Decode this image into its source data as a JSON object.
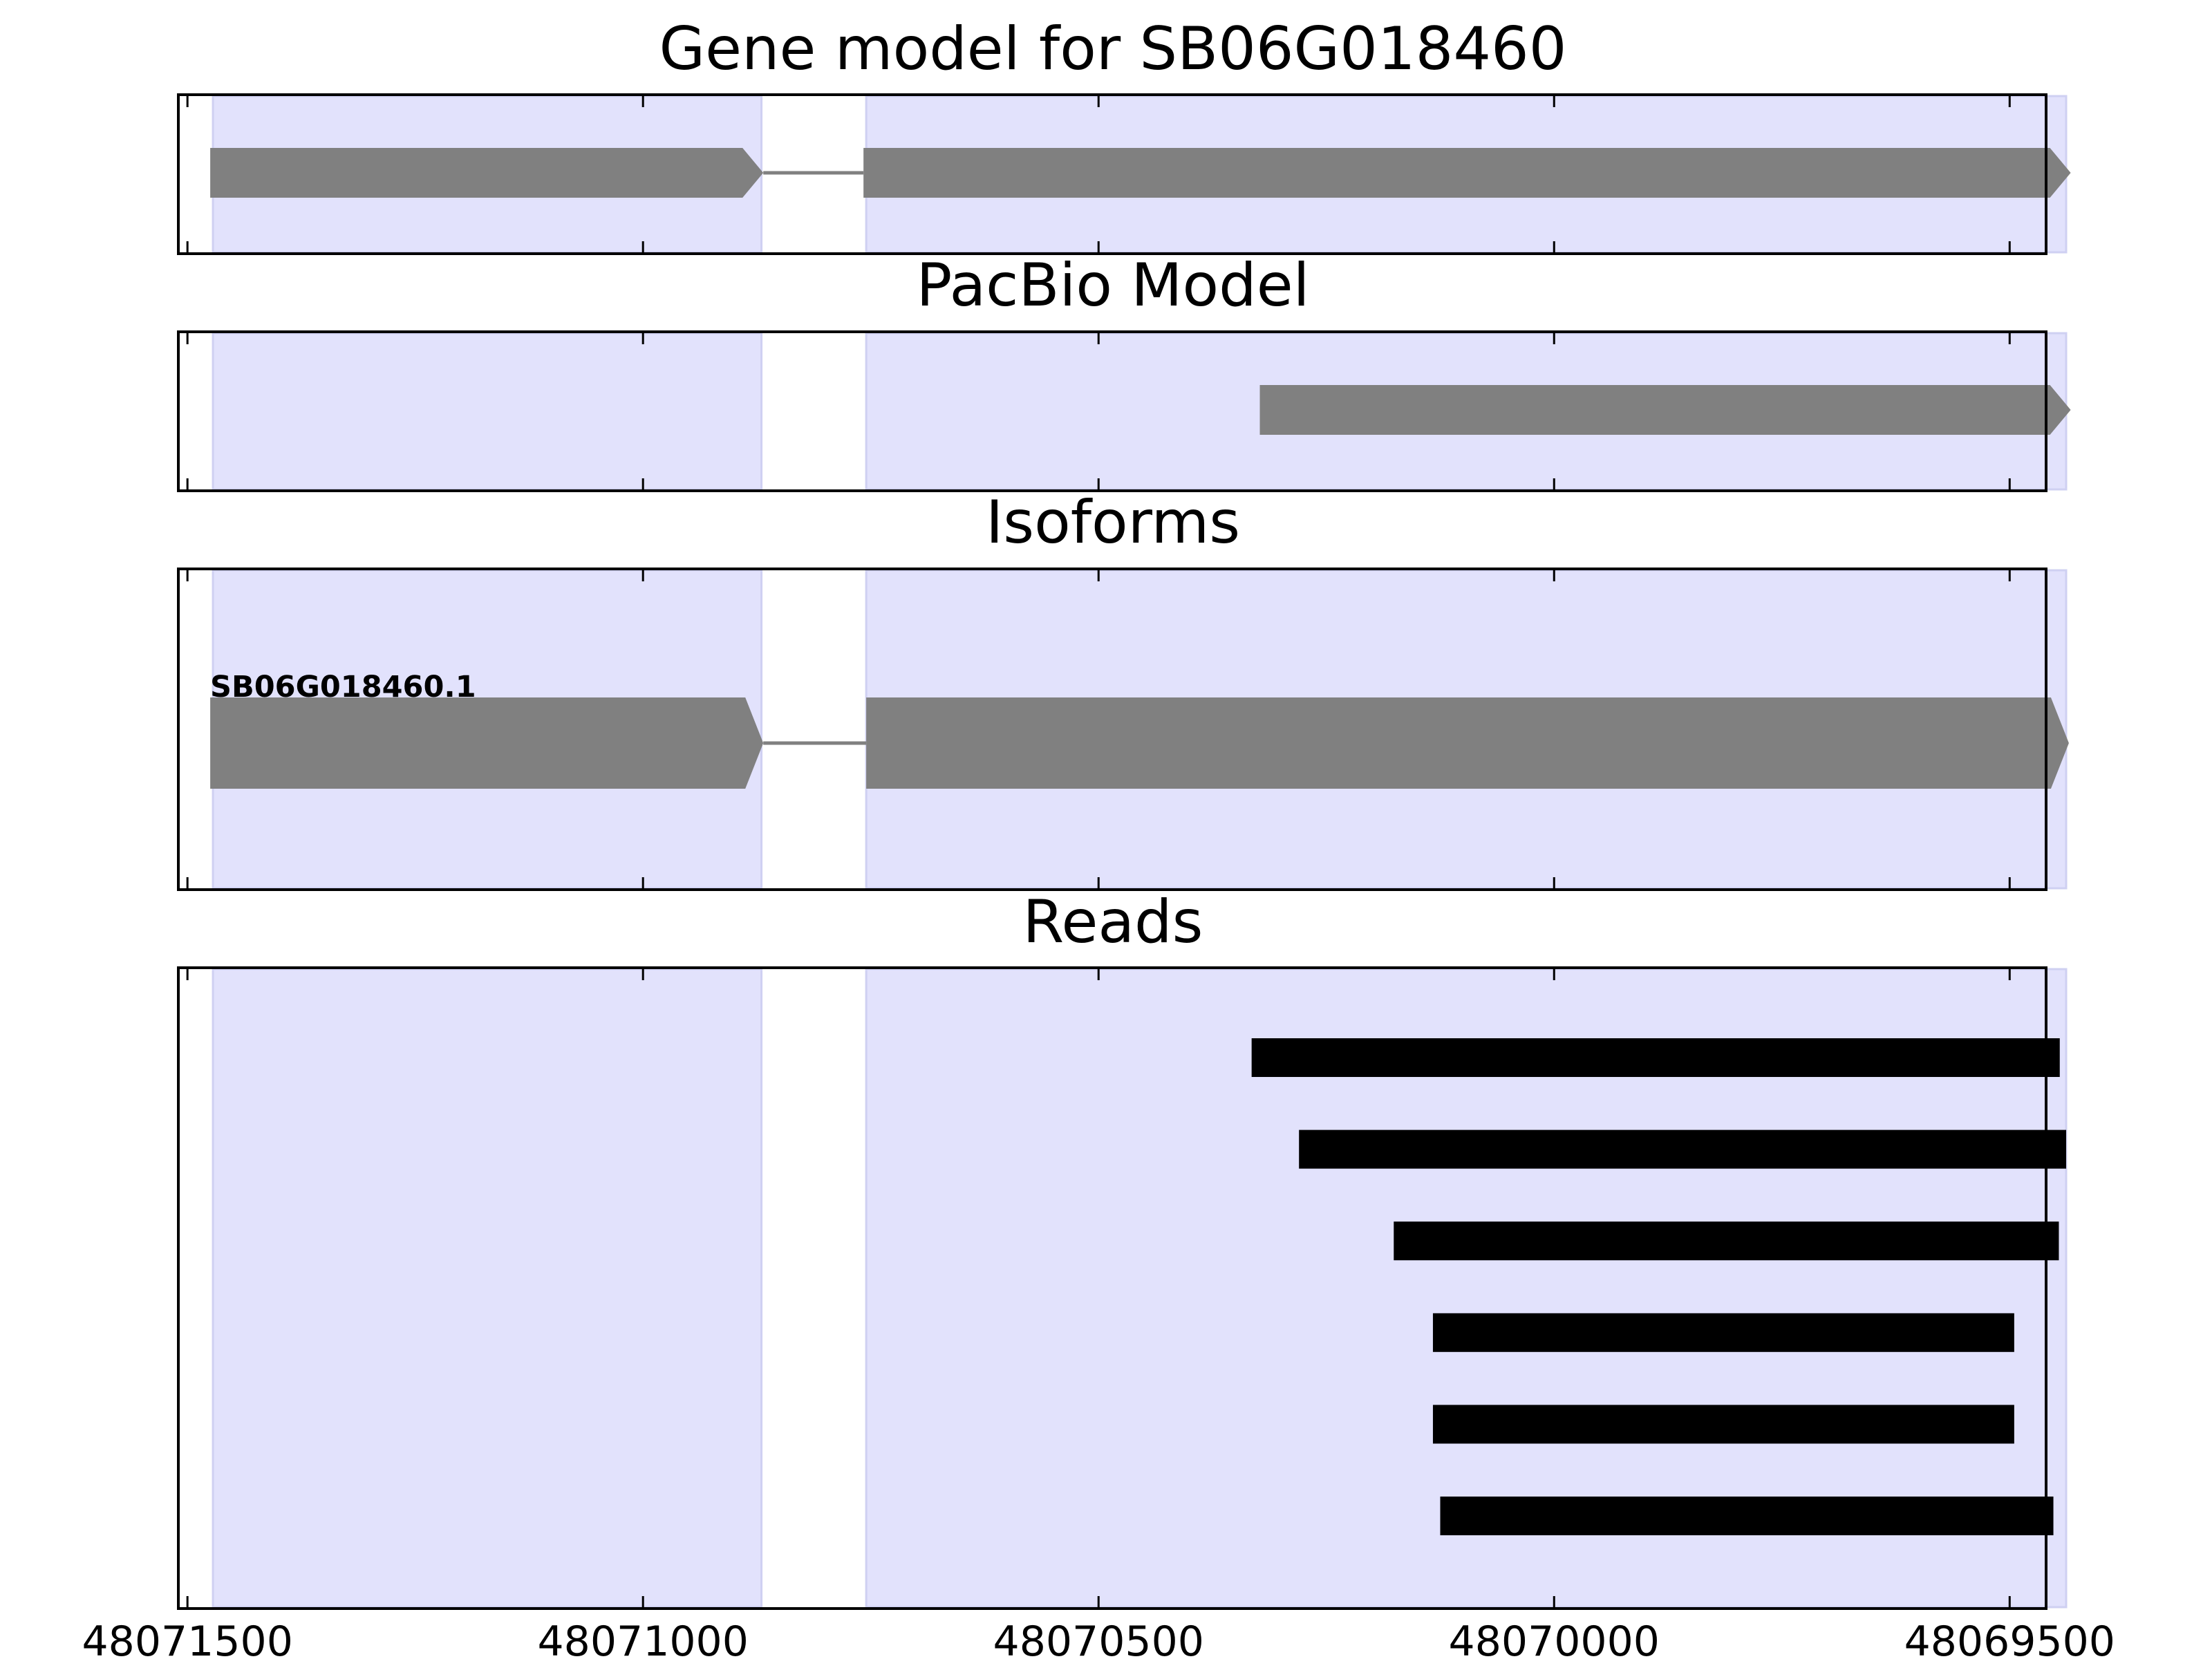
{
  "chart_data": {
    "type": "gene-track",
    "title": "",
    "xaxis": {
      "ticks": [
        48071500,
        48071000,
        48070500,
        48070000,
        48069500
      ],
      "tick_labels": [
        "48071500",
        "48071000",
        "48070500",
        "48070000",
        "48069500"
      ],
      "xlim": [
        48071510,
        48069460
      ],
      "reversed": true
    },
    "shaded_exon_regions": [
      [
        48071472,
        48070870
      ],
      [
        48070755,
        48069438
      ]
    ],
    "panels": [
      {
        "id": "gene-model",
        "title": "Gene model for SB06G018460",
        "features": [
          {
            "type": "exon",
            "start": 48071475,
            "end": 48070868
          },
          {
            "type": "intron",
            "start": 48070868,
            "end": 48070758
          },
          {
            "type": "exon",
            "start": 48070758,
            "end": 48069433
          }
        ]
      },
      {
        "id": "pacbio-model",
        "title": "PacBio Model",
        "features": [
          {
            "type": "exon",
            "start": 48070323,
            "end": 48069433
          }
        ]
      },
      {
        "id": "isoforms",
        "title": "Isoforms",
        "isoforms": [
          {
            "name": "SB06G018460.1",
            "features": [
              {
                "type": "exon",
                "start": 48071475,
                "end": 48070868
              },
              {
                "type": "intron",
                "start": 48070868,
                "end": 48070755
              },
              {
                "type": "exon",
                "start": 48070755,
                "end": 48069435
              }
            ]
          }
        ]
      },
      {
        "id": "reads",
        "title": "Reads",
        "reads": [
          {
            "start": 48070332,
            "end": 48069445
          },
          {
            "start": 48070280,
            "end": 48069438
          },
          {
            "start": 48070176,
            "end": 48069446
          },
          {
            "start": 48070133,
            "end": 48069495
          },
          {
            "start": 48070133,
            "end": 48069495
          },
          {
            "start": 48070125,
            "end": 48069452
          }
        ]
      }
    ],
    "colors": {
      "shade": "#e2e2fc",
      "feature": "#808080",
      "read": "#000000",
      "frame": "#000000"
    }
  }
}
